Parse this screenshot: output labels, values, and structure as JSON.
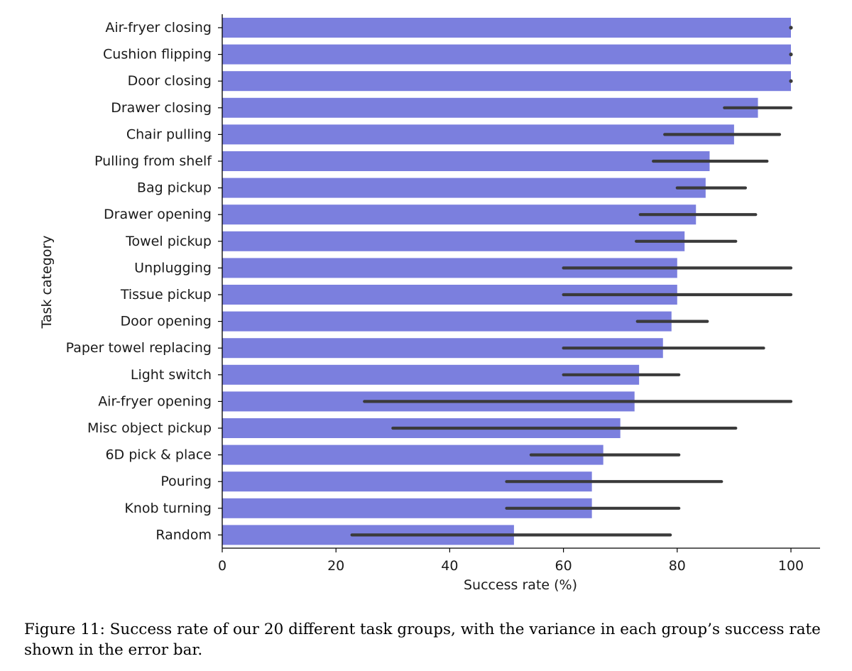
{
  "chart_data": {
    "type": "bar",
    "orientation": "horizontal",
    "xlabel": "Success rate (%)",
    "ylabel": "Task category",
    "xlim": [
      0,
      105
    ],
    "x_ticks": [
      0,
      20,
      40,
      60,
      80,
      100
    ],
    "grid": false,
    "categories": [
      "Air-fryer closing",
      "Cushion flipping",
      "Door closing",
      "Drawer closing",
      "Chair pulling",
      "Pulling from shelf",
      "Bag pickup",
      "Drawer opening",
      "Towel pickup",
      "Unplugging",
      "Tissue pickup",
      "Door opening",
      "Paper towel replacing",
      "Light switch",
      "Air-fryer opening",
      "Misc object pickup",
      "6D pick & place",
      "Pouring",
      "Knob turning",
      "Random"
    ],
    "values": [
      100,
      100,
      100,
      94.2,
      90,
      85.7,
      85,
      83.3,
      81.3,
      80,
      80,
      79,
      77.5,
      73.3,
      72.5,
      70,
      67,
      65,
      65,
      51.3
    ],
    "error_bars": [
      [
        100,
        100
      ],
      [
        100,
        100
      ],
      [
        100,
        100
      ],
      [
        88.3,
        100
      ],
      [
        77.8,
        98
      ],
      [
        75.8,
        95.8
      ],
      [
        80,
        92
      ],
      [
        73.5,
        93.8
      ],
      [
        72.8,
        90.3
      ],
      [
        60,
        100
      ],
      [
        60,
        100
      ],
      [
        73,
        85.3
      ],
      [
        60,
        95.2
      ],
      [
        60,
        80.3
      ],
      [
        25,
        100
      ],
      [
        30,
        90.3
      ],
      [
        54.3,
        80.3
      ],
      [
        50,
        87.8
      ],
      [
        50,
        80.3
      ],
      [
        22.8,
        78.8
      ]
    ],
    "colors": {
      "bar": "#7b7fde",
      "error": "#3a3a3a",
      "axis": "#000000"
    }
  },
  "caption": "Figure 11: Success rate of our 20 different task groups, with the variance in each group’s success rate shown in the error bar."
}
